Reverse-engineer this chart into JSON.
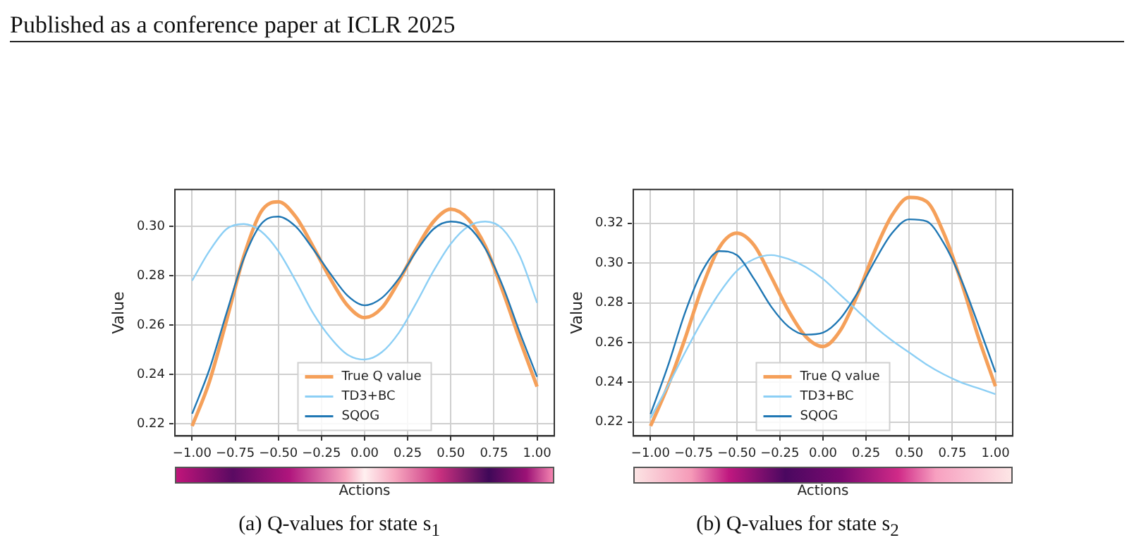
{
  "chart_data": [
    {
      "type": "line",
      "xlabel": "Actions",
      "ylabel": "Value",
      "x": [
        -1,
        -0.9,
        -0.8,
        -0.7,
        -0.6,
        -0.5,
        -0.4,
        -0.3,
        -0.2,
        -0.1,
        0,
        0.1,
        0.2,
        0.3,
        0.4,
        0.5,
        0.6,
        0.7,
        0.8,
        0.9,
        1
      ],
      "series": [
        {
          "name": "True Q value",
          "color": "#f5a05a",
          "values": [
            0.219,
            0.237,
            0.262,
            0.288,
            0.306,
            0.31,
            0.304,
            0.292,
            0.279,
            0.268,
            0.263,
            0.267,
            0.278,
            0.291,
            0.302,
            0.307,
            0.303,
            0.292,
            0.274,
            0.254,
            0.235
          ]
        },
        {
          "name": "TD3+BC",
          "color": "#8ccff5",
          "values": [
            0.278,
            0.29,
            0.299,
            0.301,
            0.298,
            0.29,
            0.278,
            0.265,
            0.255,
            0.248,
            0.246,
            0.249,
            0.257,
            0.269,
            0.282,
            0.293,
            0.3,
            0.302,
            0.299,
            0.288,
            0.269
          ]
        },
        {
          "name": "SQOG",
          "color": "#1f77b4",
          "values": [
            0.224,
            0.242,
            0.265,
            0.287,
            0.301,
            0.304,
            0.3,
            0.291,
            0.281,
            0.272,
            0.268,
            0.271,
            0.279,
            0.29,
            0.299,
            0.302,
            0.3,
            0.291,
            0.276,
            0.257,
            0.239
          ]
        }
      ],
      "xlim": [
        -1.1,
        1.1
      ],
      "xticks": [
        {
          "value": -1,
          "label": "−1.00"
        },
        {
          "value": -0.75,
          "label": "−0.75"
        },
        {
          "value": -0.5,
          "label": "−0.50"
        },
        {
          "value": -0.25,
          "label": "−0.25"
        },
        {
          "value": 0,
          "label": "0.00"
        },
        {
          "value": 0.25,
          "label": "0.25"
        },
        {
          "value": 0.5,
          "label": "0.50"
        },
        {
          "value": 0.75,
          "label": "0.75"
        },
        {
          "value": 1,
          "label": "1.00"
        }
      ],
      "ylim": [
        0.215,
        0.315
      ],
      "yticks": [
        0.22,
        0.24,
        0.26,
        0.28,
        {
          "value": 0.3,
          "label": "0.30"
        }
      ],
      "grid": true,
      "legend": "bottom",
      "marker": "none",
      "line_style": "solid",
      "annotations": [
        "Published as a conference paper at ICLR 2025",
        "(a) Q-values for state s$_{1}$"
      ]
    },
    {
      "type": "line",
      "xlabel": "Actions",
      "ylabel": "Value",
      "x": [
        -1,
        -0.9,
        -0.8,
        -0.7,
        -0.6,
        -0.5,
        -0.4,
        -0.3,
        -0.2,
        -0.1,
        0,
        0.1,
        0.2,
        0.3,
        0.4,
        0.5,
        0.6,
        0.7,
        0.8,
        0.9,
        1
      ],
      "series": [
        {
          "name": "True Q value",
          "color": "#f5a05a",
          "values": [
            0.218,
            0.238,
            0.262,
            0.288,
            0.308,
            0.315,
            0.309,
            0.293,
            0.276,
            0.263,
            0.258,
            0.266,
            0.284,
            0.306,
            0.324,
            0.333,
            0.331,
            0.315,
            0.291,
            0.263,
            0.238
          ]
        },
        {
          "name": "TD3+BC",
          "color": "#8ccff5",
          "values": [
            0.222,
            0.238,
            0.255,
            0.271,
            0.285,
            0.296,
            0.302,
            0.304,
            0.302,
            0.298,
            0.292,
            0.284,
            0.276,
            0.268,
            0.261,
            0.255,
            0.249,
            0.244,
            0.24,
            0.237,
            0.234
          ]
        },
        {
          "name": "SQOG",
          "color": "#1f77b4",
          "values": [
            0.224,
            0.248,
            0.275,
            0.296,
            0.306,
            0.304,
            0.292,
            0.278,
            0.268,
            0.264,
            0.265,
            0.272,
            0.285,
            0.301,
            0.315,
            0.322,
            0.321,
            0.31,
            0.292,
            0.269,
            0.245
          ]
        }
      ],
      "xlim": [
        -1.1,
        1.1
      ],
      "xticks": [
        {
          "value": -1,
          "label": "−1.00"
        },
        {
          "value": -0.75,
          "label": "−0.75"
        },
        {
          "value": -0.5,
          "label": "−0.50"
        },
        {
          "value": -0.25,
          "label": "−0.25"
        },
        {
          "value": 0,
          "label": "0.00"
        },
        {
          "value": 0.25,
          "label": "0.25"
        },
        {
          "value": 0.5,
          "label": "0.50"
        },
        {
          "value": 0.75,
          "label": "0.75"
        },
        {
          "value": 1,
          "label": "1.00"
        }
      ],
      "ylim": [
        0.213,
        0.337
      ],
      "yticks": [
        0.22,
        0.24,
        0.26,
        0.28,
        {
          "value": 0.3,
          "label": "0.30"
        },
        0.32
      ],
      "grid": true,
      "legend": "bottom",
      "marker": "none",
      "line_style": "solid",
      "annotations": [
        "(b) Q-values for state s$_{2}$"
      ]
    }
  ]
}
